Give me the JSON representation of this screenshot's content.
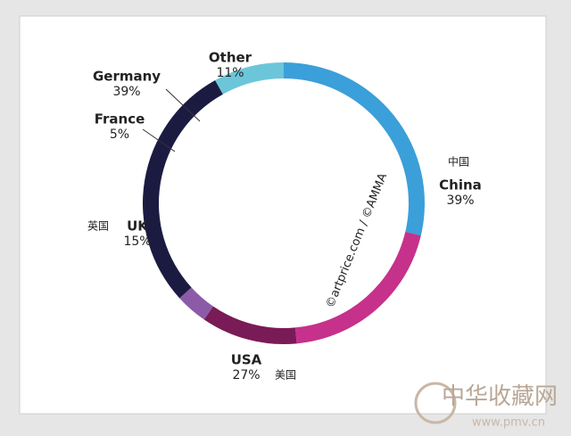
{
  "chart_data": {
    "type": "donut",
    "categories": [
      "China",
      "USA",
      "UK",
      "France",
      "Germany",
      "Other"
    ],
    "values": [
      39,
      27,
      15,
      5,
      39,
      11
    ],
    "value_labels": [
      "39%",
      "27%",
      "15%",
      "5%",
      "39%",
      "11%"
    ],
    "colors": [
      "#3b9fd9",
      "#c6318b",
      "#791b56",
      "#8b5ba8",
      "#1b1b42",
      "#6cc6d9"
    ],
    "annotations": [
      "中国",
      "美国",
      "英国"
    ],
    "source": "©artprice.com / ©AMMA",
    "watermark": {
      "text": "中华收藏网",
      "url": "www.pmv.cn"
    }
  }
}
